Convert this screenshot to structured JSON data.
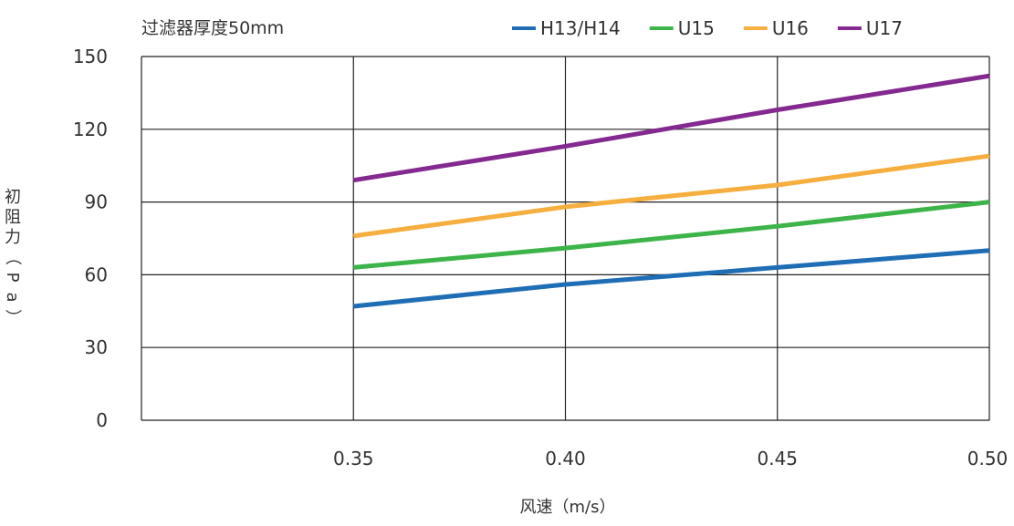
{
  "chart_data": {
    "type": "line",
    "title": "过滤器厚度50mm",
    "xlabel": "风速（m/s）",
    "ylabel": "初阻力（Pa）",
    "x": [
      0.35,
      0.4,
      0.45,
      0.5
    ],
    "x_tick_labels": [
      "0.35",
      "0.40",
      "0.45",
      "0.50"
    ],
    "xlim": [
      0.3,
      0.5
    ],
    "ylim": [
      0,
      150
    ],
    "y_ticks": [
      0,
      30,
      60,
      90,
      120,
      150
    ],
    "y_tick_labels": [
      "0",
      "30",
      "60",
      "90",
      "120",
      "150"
    ],
    "grid": true,
    "legend_position": "top-right",
    "series": [
      {
        "name": "H13/H14",
        "color": "#1f6eb5",
        "values": [
          47,
          56,
          63,
          70
        ]
      },
      {
        "name": "U15",
        "color": "#3db449",
        "values": [
          63,
          71,
          80,
          90
        ]
      },
      {
        "name": "U16",
        "color": "#f6ae3f",
        "values": [
          76,
          88,
          97,
          109
        ]
      },
      {
        "name": "U17",
        "color": "#83298f",
        "values": [
          99,
          113,
          128,
          142
        ]
      }
    ]
  }
}
